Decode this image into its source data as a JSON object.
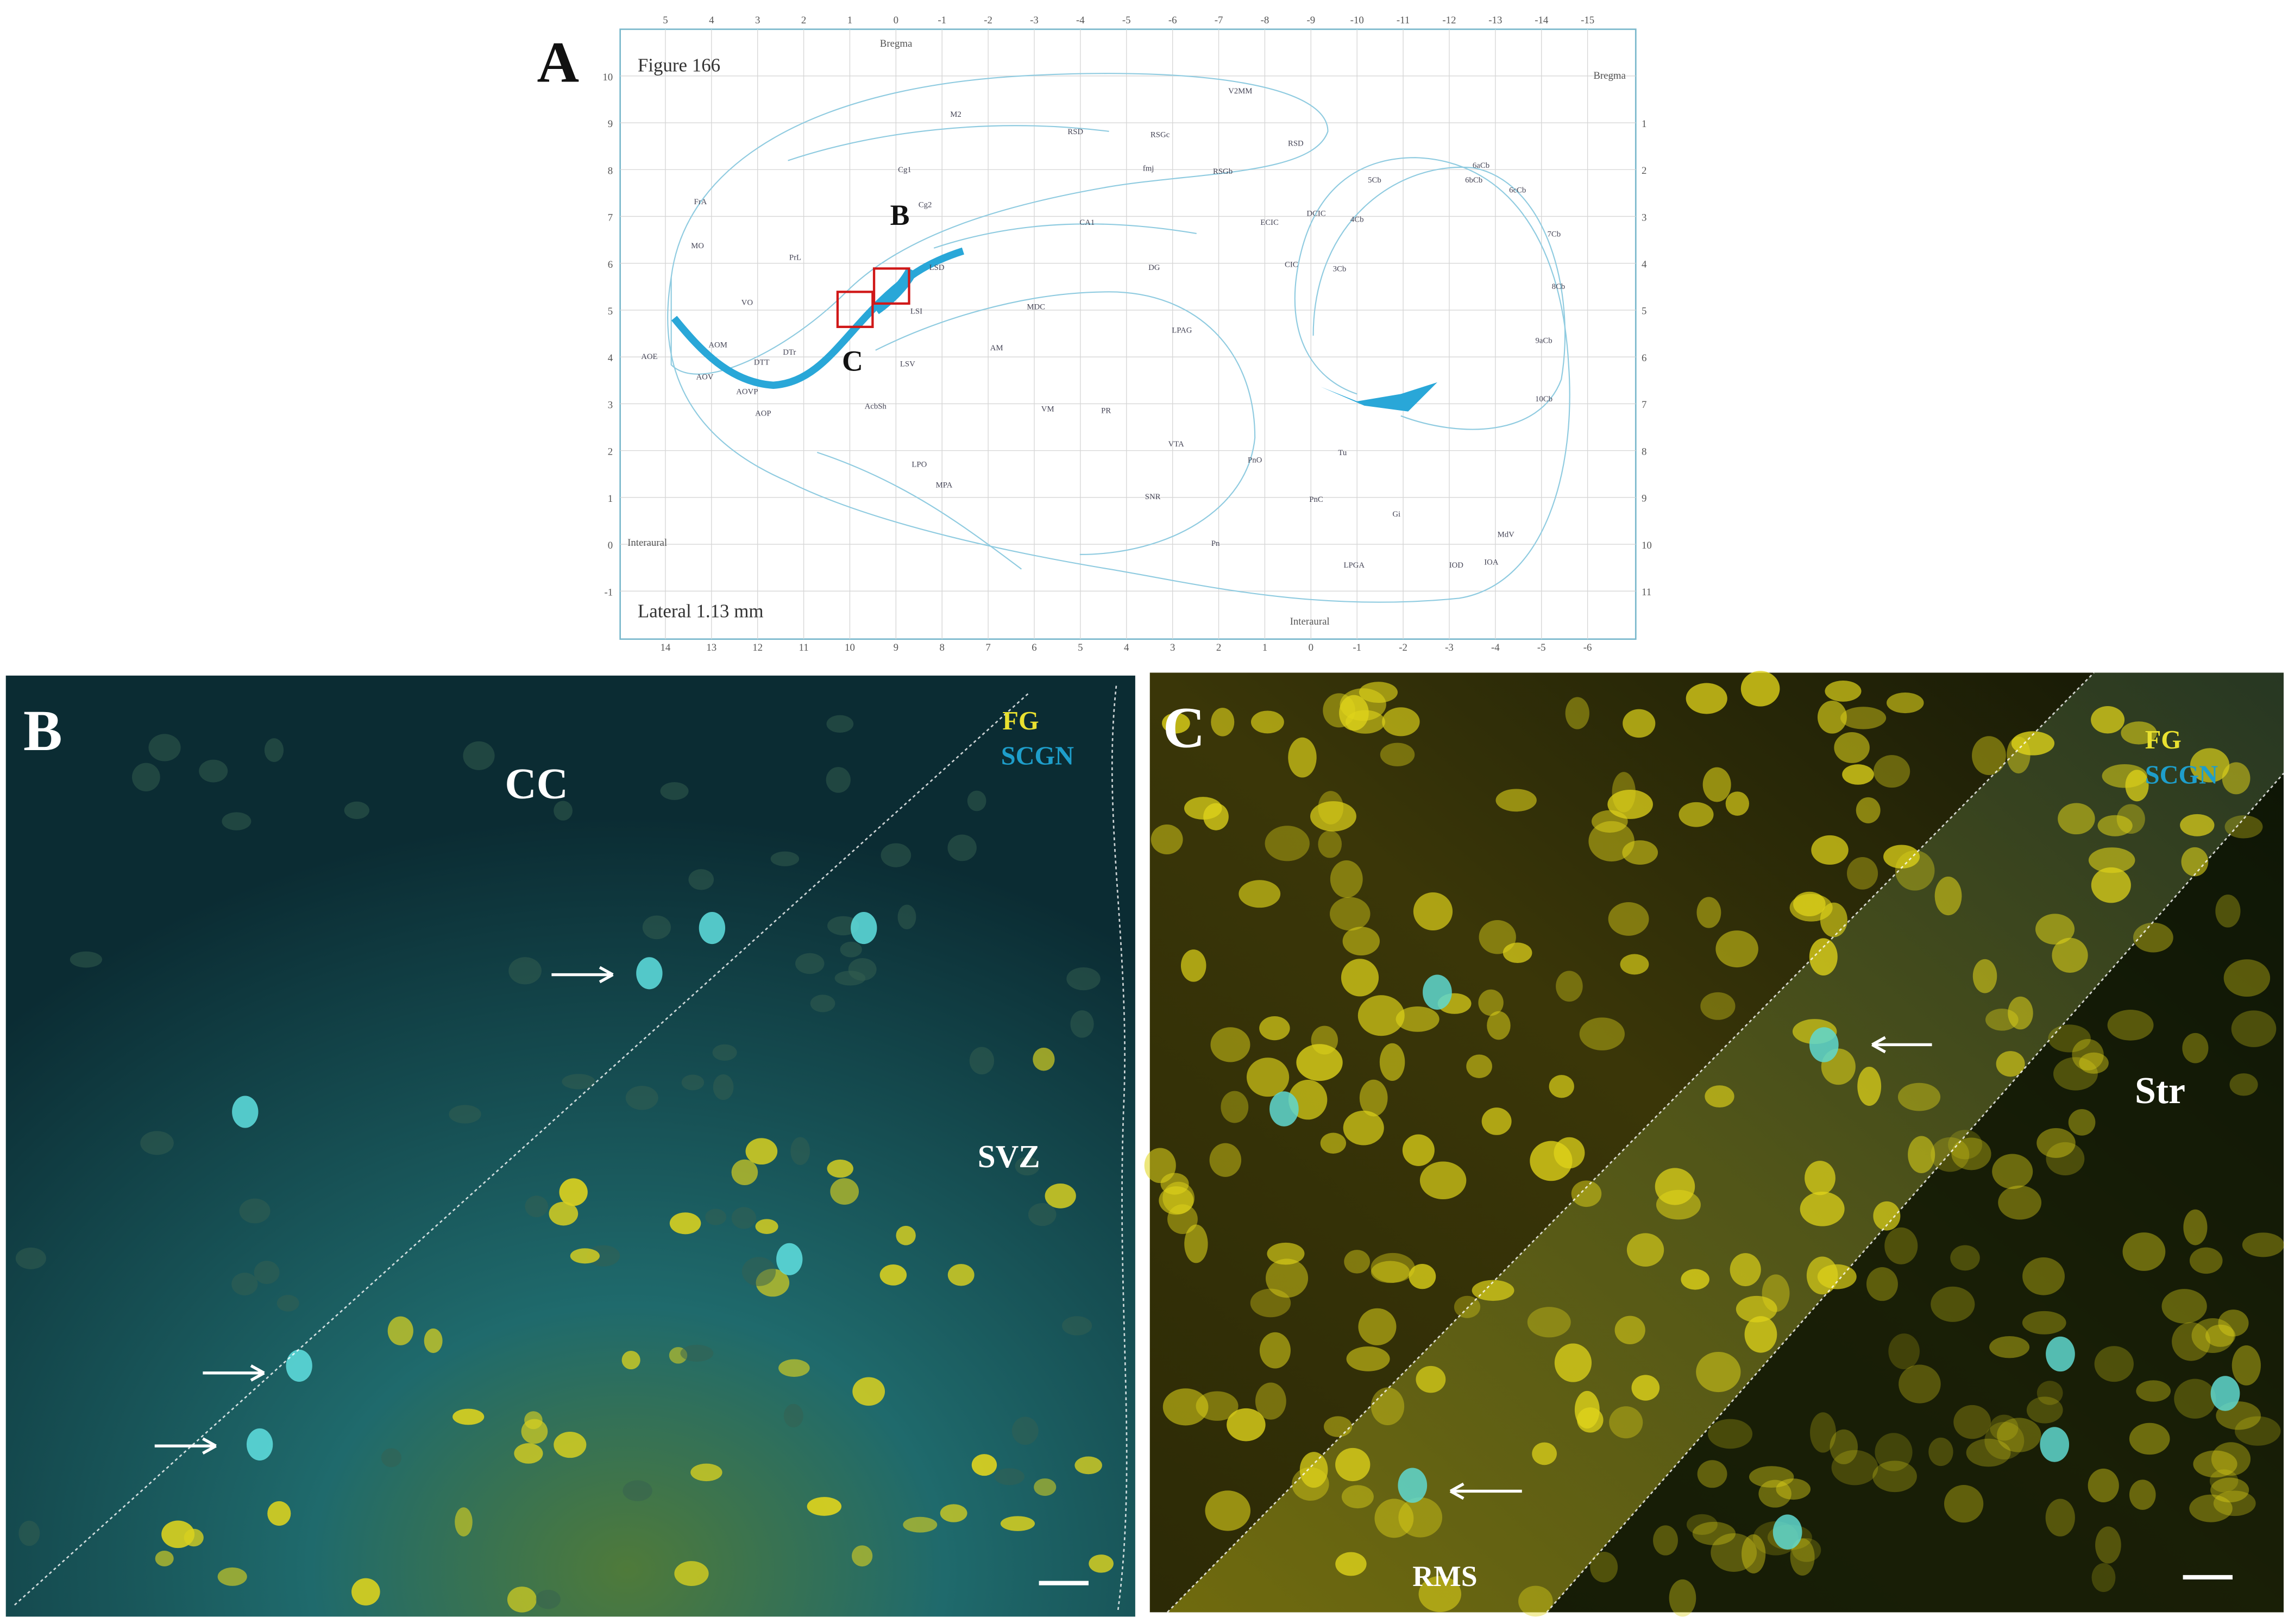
{
  "panel_a": {
    "label": "A",
    "figure": "Figure 166",
    "lateral": "Lateral 1.13 mm",
    "bregma_top": "Bregma",
    "bregma_right": "Bregma",
    "interaural_left": "Interaural",
    "interaural_bottom": "Interaural",
    "top_scale": [
      "5",
      "4",
      "3",
      "2",
      "1",
      "0",
      "-1",
      "-2",
      "-3",
      "-4",
      "-5",
      "-6",
      "-7",
      "-8",
      "-9",
      "-10",
      "-11",
      "-12",
      "-13",
      "-14",
      "-15"
    ],
    "bottom_scale": [
      "14",
      "13",
      "12",
      "11",
      "10",
      "9",
      "8",
      "7",
      "6",
      "5",
      "4",
      "3",
      "2",
      "1",
      "0",
      "-1",
      "-2",
      "-3",
      "-4",
      "-5",
      "-6"
    ],
    "left_scale": [
      "10",
      "9",
      "8",
      "7",
      "6",
      "5",
      "4",
      "3",
      "2",
      "1",
      "0",
      "-1"
    ],
    "right_scale": [
      "1",
      "2",
      "3",
      "4",
      "5",
      "6",
      "7",
      "8",
      "9",
      "10",
      "11"
    ],
    "box_b": "B",
    "box_c": "C",
    "regions": [
      "M2",
      "V2MM",
      "RSD",
      "RSD",
      "RSGc",
      "Cg1",
      "RSGb",
      "fmj",
      "Cg2",
      "PrL",
      "MO",
      "FrA",
      "VO",
      "LSD",
      "LSI",
      "CA1",
      "DG",
      "DCIC",
      "ECIC",
      "CIC",
      "4Cb",
      "5Cb",
      "3Cb",
      "6aCb",
      "6bCb",
      "6cCb",
      "7Cb",
      "AOM",
      "AOE",
      "AOV",
      "DTT",
      "DTr",
      "AOVP",
      "AOP",
      "LSV",
      "AcbSh",
      "AM",
      "VM",
      "MDC",
      "LPAG",
      "PnO",
      "PnC",
      "Gi",
      "MdV",
      "LPGA",
      "IOD",
      "IOA",
      "Pn",
      "SNR",
      "VTA",
      "PR",
      "LPO",
      "MPA",
      "Tu",
      "8Cb",
      "9aCb",
      "10Cb"
    ]
  },
  "panel_b": {
    "label": "B",
    "region_top": "CC",
    "region_right": "SVZ",
    "marker_1": "FG",
    "marker_2": "SCGN"
  },
  "panel_c": {
    "label": "C",
    "marker_1": "FG",
    "marker_2": "SCGN",
    "region_right": "Str",
    "region_bottom": "RMS"
  }
}
